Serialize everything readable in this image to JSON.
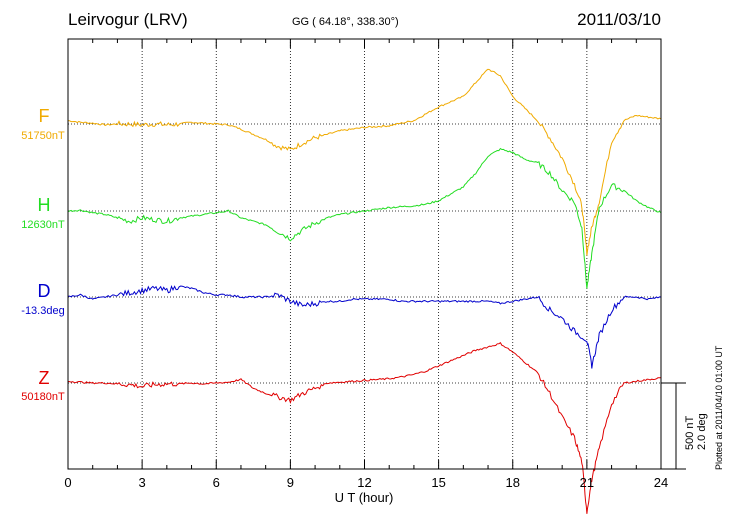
{
  "header": {
    "station": "Leirvogur (LRV)",
    "coords": "GG ( 64.18°, 338.30°)",
    "date": "2011/03/10"
  },
  "footer": {
    "plotted": "Plotted at 2011/04/10 01:00 UT"
  },
  "scale": {
    "nt": "500 nT",
    "deg": "2.0 deg"
  },
  "colors": {
    "F": "#f0aa00",
    "H": "#22dd22",
    "D": "#0000cc",
    "Z": "#e00000"
  },
  "chart_data": {
    "type": "line",
    "title": "Leirvogur (LRV)",
    "xlabel": "U T (hour)",
    "ylabel": "",
    "xlim": [
      0,
      24
    ],
    "xticks": [
      0,
      3,
      6,
      9,
      12,
      15,
      18,
      21,
      24
    ],
    "grid": true,
    "series": [
      {
        "name": "F",
        "baseline": "51750nT",
        "x": [
          0,
          0.5,
          1,
          1.5,
          2,
          2.5,
          3,
          3.5,
          4,
          4.5,
          5,
          5.5,
          6,
          6.5,
          7,
          7.5,
          8,
          8.5,
          9,
          9.5,
          10,
          10.5,
          11,
          11.5,
          12,
          12.5,
          13,
          13.5,
          14,
          14.5,
          15,
          15.5,
          16,
          16.5,
          17,
          17.5,
          18,
          18.5,
          19,
          19.5,
          20,
          20.5,
          20.8,
          21,
          21.2,
          21.5,
          22,
          22.5,
          23,
          23.5,
          24
        ],
        "values": [
          20,
          10,
          5,
          -5,
          0,
          0,
          -5,
          0,
          -5,
          0,
          10,
          5,
          0,
          -5,
          -30,
          -60,
          -90,
          -130,
          -150,
          -110,
          -80,
          -60,
          -40,
          -30,
          -20,
          -15,
          -10,
          5,
          20,
          60,
          100,
          130,
          160,
          240,
          320,
          280,
          160,
          90,
          20,
          -80,
          -200,
          -350,
          -480,
          -750,
          -600,
          -450,
          -100,
          20,
          50,
          40,
          30
        ]
      },
      {
        "name": "H",
        "baseline": "12630nT",
        "x": [
          0,
          0.5,
          1,
          1.5,
          2,
          2.5,
          3,
          3.5,
          4,
          4.5,
          5,
          5.5,
          6,
          6.5,
          7,
          7.5,
          8,
          8.5,
          9,
          9.5,
          10,
          10.5,
          11,
          11.5,
          12,
          12.5,
          13,
          13.5,
          14,
          14.5,
          15,
          15.5,
          16,
          16.5,
          17,
          17.5,
          18,
          18.5,
          19,
          19.5,
          20,
          20.5,
          20.8,
          21,
          21.2,
          21.5,
          22,
          22.5,
          23,
          23.5,
          24
        ],
        "values": [
          0,
          5,
          -10,
          -20,
          -40,
          -60,
          -40,
          -50,
          -60,
          -40,
          -30,
          -20,
          -10,
          0,
          -40,
          -60,
          -80,
          -120,
          -160,
          -110,
          -70,
          -40,
          -20,
          -10,
          0,
          10,
          20,
          25,
          30,
          40,
          60,
          100,
          140,
          220,
          320,
          360,
          340,
          300,
          280,
          220,
          120,
          50,
          -100,
          -450,
          -250,
          20,
          150,
          120,
          60,
          20,
          -10
        ]
      },
      {
        "name": "D",
        "baseline": "-13.3deg",
        "x": [
          0,
          0.5,
          1,
          1.5,
          2,
          2.5,
          3,
          3.5,
          4,
          4.5,
          5,
          5.5,
          6,
          6.5,
          7,
          7.5,
          8,
          8.5,
          9,
          9.5,
          10,
          10.5,
          11,
          11.5,
          12,
          12.5,
          13,
          13.5,
          14,
          14.5,
          15,
          15.5,
          16,
          16.5,
          17,
          17.5,
          18,
          18.5,
          19,
          19.5,
          20,
          20.5,
          21,
          21.2,
          21.5,
          22,
          22.5,
          23,
          23.5,
          24
        ],
        "values": [
          0.0,
          0.05,
          -0.05,
          0.0,
          0.05,
          0.1,
          0.15,
          0.2,
          0.15,
          0.25,
          0.2,
          0.1,
          0.05,
          0.05,
          0.0,
          0.0,
          0.0,
          0.05,
          -0.1,
          -0.2,
          -0.15,
          -0.1,
          -0.1,
          -0.05,
          -0.05,
          -0.05,
          -0.05,
          -0.1,
          -0.1,
          -0.1,
          -0.1,
          -0.1,
          -0.1,
          -0.1,
          -0.1,
          -0.15,
          -0.1,
          -0.05,
          0.0,
          -0.3,
          -0.5,
          -0.8,
          -1.0,
          -1.6,
          -0.9,
          -0.3,
          0.0,
          0.0,
          -0.05,
          0.0
        ]
      },
      {
        "name": "Z",
        "baseline": "50180nT",
        "x": [
          0,
          0.5,
          1,
          1.5,
          2,
          2.5,
          3,
          3.5,
          4,
          4.5,
          5,
          5.5,
          6,
          6.5,
          7,
          7.5,
          8,
          8.5,
          9,
          9.5,
          10,
          10.5,
          11,
          11.5,
          12,
          12.5,
          13,
          13.5,
          14,
          14.5,
          15,
          15.5,
          16,
          16.5,
          17,
          17.5,
          18,
          18.5,
          19,
          19.5,
          20,
          20.5,
          20.8,
          21,
          21.2,
          21.5,
          22,
          22.5,
          23,
          23.5,
          24
        ],
        "values": [
          10,
          5,
          0,
          0,
          -5,
          -10,
          -20,
          -10,
          -5,
          -5,
          0,
          -5,
          0,
          5,
          20,
          -30,
          -60,
          -80,
          -100,
          -60,
          -30,
          0,
          5,
          10,
          15,
          20,
          25,
          35,
          50,
          70,
          100,
          130,
          160,
          190,
          210,
          230,
          180,
          120,
          60,
          -60,
          -200,
          -320,
          -460,
          -750,
          -560,
          -380,
          -120,
          0,
          10,
          20,
          30
        ]
      }
    ]
  }
}
